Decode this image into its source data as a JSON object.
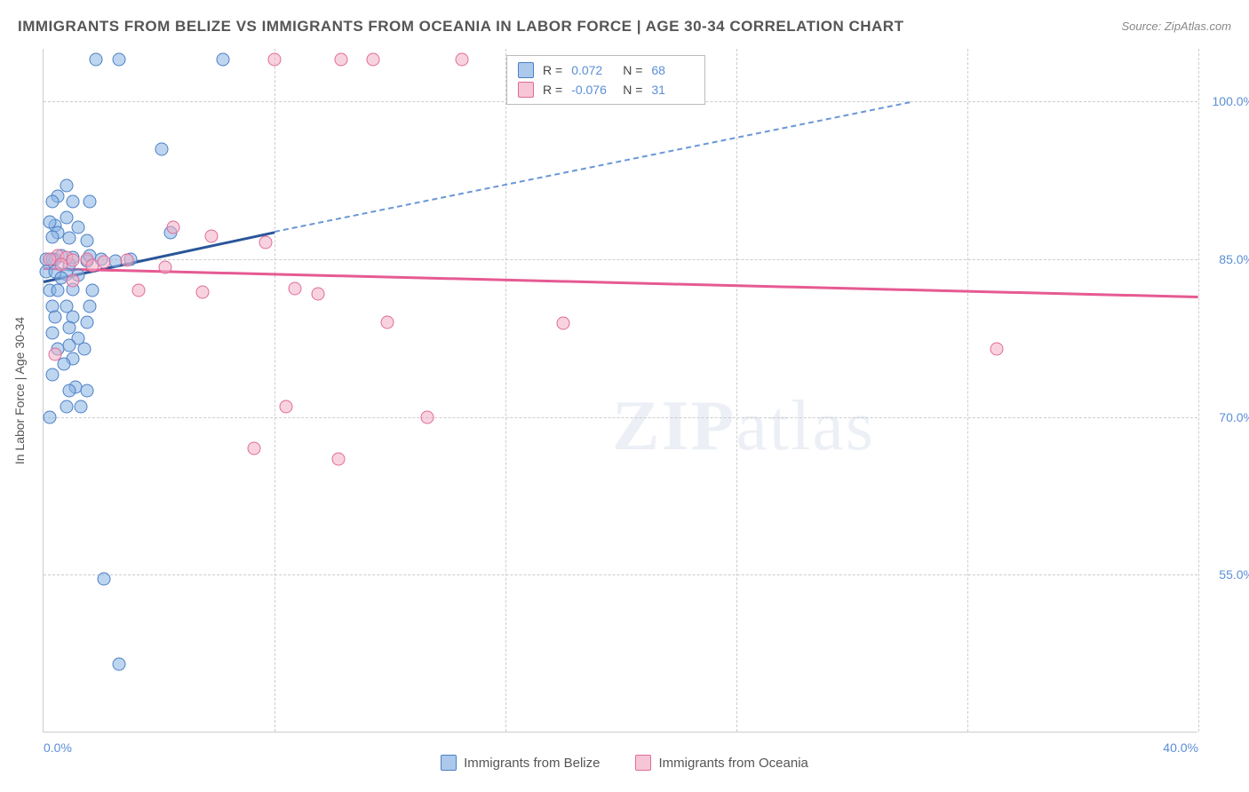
{
  "title": "IMMIGRANTS FROM BELIZE VS IMMIGRANTS FROM OCEANIA IN LABOR FORCE | AGE 30-34 CORRELATION CHART",
  "source": "Source: ZipAtlas.com",
  "yaxis_title": "In Labor Force | Age 30-34",
  "watermark": {
    "bold": "ZIP",
    "rest": "atlas"
  },
  "chart": {
    "type": "scatter",
    "background_color": "#ffffff",
    "grid_color": "#cccccc",
    "grid_dash": true,
    "xlim": [
      0,
      40
    ],
    "ylim": [
      40,
      105
    ],
    "x_ticks": [
      0,
      8,
      16,
      24,
      32,
      40
    ],
    "x_tick_labels": [
      "0.0%",
      "",
      "",
      "",
      "",
      "40.0%"
    ],
    "y_ticks": [
      55,
      70,
      85,
      100
    ],
    "y_tick_labels": [
      "55.0%",
      "70.0%",
      "85.0%",
      "100.0%"
    ],
    "marker_size": 15,
    "series": [
      {
        "name": "Immigrants from Belize",
        "color_fill": "rgba(137,178,228,0.55)",
        "color_stroke": "#4a7fc4",
        "trend_color_solid": "#2a5599",
        "trend_color_dash": "#6a97d6",
        "R": "0.072",
        "N": "68",
        "trend": {
          "x1": 0,
          "y1": 83,
          "x2_solid": 8,
          "y2_solid": 87.7,
          "x2_dash": 30,
          "y2_dash": 100
        },
        "points": [
          [
            1.8,
            104
          ],
          [
            2.6,
            104
          ],
          [
            6.2,
            104
          ],
          [
            0.5,
            91
          ],
          [
            0.8,
            92
          ],
          [
            0.3,
            90.5
          ],
          [
            4.1,
            95.5
          ],
          [
            0.8,
            89
          ],
          [
            1.2,
            88
          ],
          [
            0.4,
            88.2
          ],
          [
            1.6,
            90.5
          ],
          [
            1.0,
            90.5
          ],
          [
            0.2,
            88.5
          ],
          [
            0.5,
            87.5
          ],
          [
            0.9,
            87
          ],
          [
            1.5,
            86.8
          ],
          [
            0.3,
            87.1
          ],
          [
            4.4,
            87.5
          ],
          [
            0.1,
            85.0
          ],
          [
            0.4,
            85.0
          ],
          [
            1.0,
            85.2
          ],
          [
            1.5,
            84.8
          ],
          [
            0.9,
            84.5
          ],
          [
            0.6,
            85.3
          ],
          [
            0.3,
            85.0
          ],
          [
            2.0,
            85.0
          ],
          [
            2.5,
            84.8
          ],
          [
            1.6,
            85.3
          ],
          [
            3.0,
            85.0
          ],
          [
            0.1,
            83.8
          ],
          [
            0.4,
            83.8
          ],
          [
            0.8,
            83.6
          ],
          [
            1.2,
            83.5
          ],
          [
            0.6,
            83.2
          ],
          [
            0.2,
            82.0
          ],
          [
            0.5,
            82.0
          ],
          [
            1.0,
            82.1
          ],
          [
            1.7,
            82.0
          ],
          [
            0.3,
            80.5
          ],
          [
            0.8,
            80.5
          ],
          [
            1.6,
            80.5
          ],
          [
            0.4,
            79.5
          ],
          [
            1.0,
            79.5
          ],
          [
            1.5,
            79.0
          ],
          [
            0.9,
            78.5
          ],
          [
            0.3,
            78.0
          ],
          [
            1.2,
            77.5
          ],
          [
            0.9,
            76.8
          ],
          [
            1.4,
            76.5
          ],
          [
            0.5,
            76.5
          ],
          [
            1.0,
            75.5
          ],
          [
            0.7,
            75.0
          ],
          [
            0.3,
            74.0
          ],
          [
            1.1,
            72.8
          ],
          [
            0.9,
            72.5
          ],
          [
            1.5,
            72.5
          ],
          [
            1.3,
            71.0
          ],
          [
            0.8,
            71.0
          ],
          [
            0.2,
            70.0
          ],
          [
            2.1,
            54.6
          ],
          [
            2.6,
            46.5
          ]
        ]
      },
      {
        "name": "Immigrants from Oceania",
        "color_fill": "rgba(242,174,196,0.55)",
        "color_stroke": "#e06a9a",
        "trend_color_solid": "#e65a92",
        "R": "-0.076",
        "N": "31",
        "trend": {
          "x1": 0,
          "y1": 84.2,
          "x2_solid": 40,
          "y2_solid": 81.5
        },
        "points": [
          [
            8.0,
            104
          ],
          [
            10.3,
            104
          ],
          [
            11.4,
            104
          ],
          [
            14.5,
            104
          ],
          [
            4.5,
            88
          ],
          [
            5.8,
            87.2
          ],
          [
            7.7,
            86.6
          ],
          [
            0.5,
            85.3
          ],
          [
            0.8,
            85.2
          ],
          [
            0.2,
            85.0
          ],
          [
            1.0,
            84.9
          ],
          [
            1.5,
            85.0
          ],
          [
            0.6,
            84.5
          ],
          [
            2.1,
            84.7
          ],
          [
            1.7,
            84.4
          ],
          [
            2.9,
            84.9
          ],
          [
            4.2,
            84.2
          ],
          [
            1.0,
            83.0
          ],
          [
            3.3,
            82.0
          ],
          [
            5.5,
            81.9
          ],
          [
            8.7,
            82.2
          ],
          [
            9.5,
            81.7
          ],
          [
            11.9,
            79.0
          ],
          [
            18.0,
            78.9
          ],
          [
            33.0,
            76.5
          ],
          [
            0.4,
            76.0
          ],
          [
            8.4,
            71.0
          ],
          [
            7.3,
            67.0
          ],
          [
            10.2,
            66.0
          ],
          [
            13.3,
            70.0
          ]
        ]
      }
    ]
  },
  "legend_top": {
    "r_label": "R =",
    "n_label": "N ="
  },
  "legend_bottom": {
    "items": [
      "Immigrants from Belize",
      "Immigrants from Oceania"
    ]
  }
}
